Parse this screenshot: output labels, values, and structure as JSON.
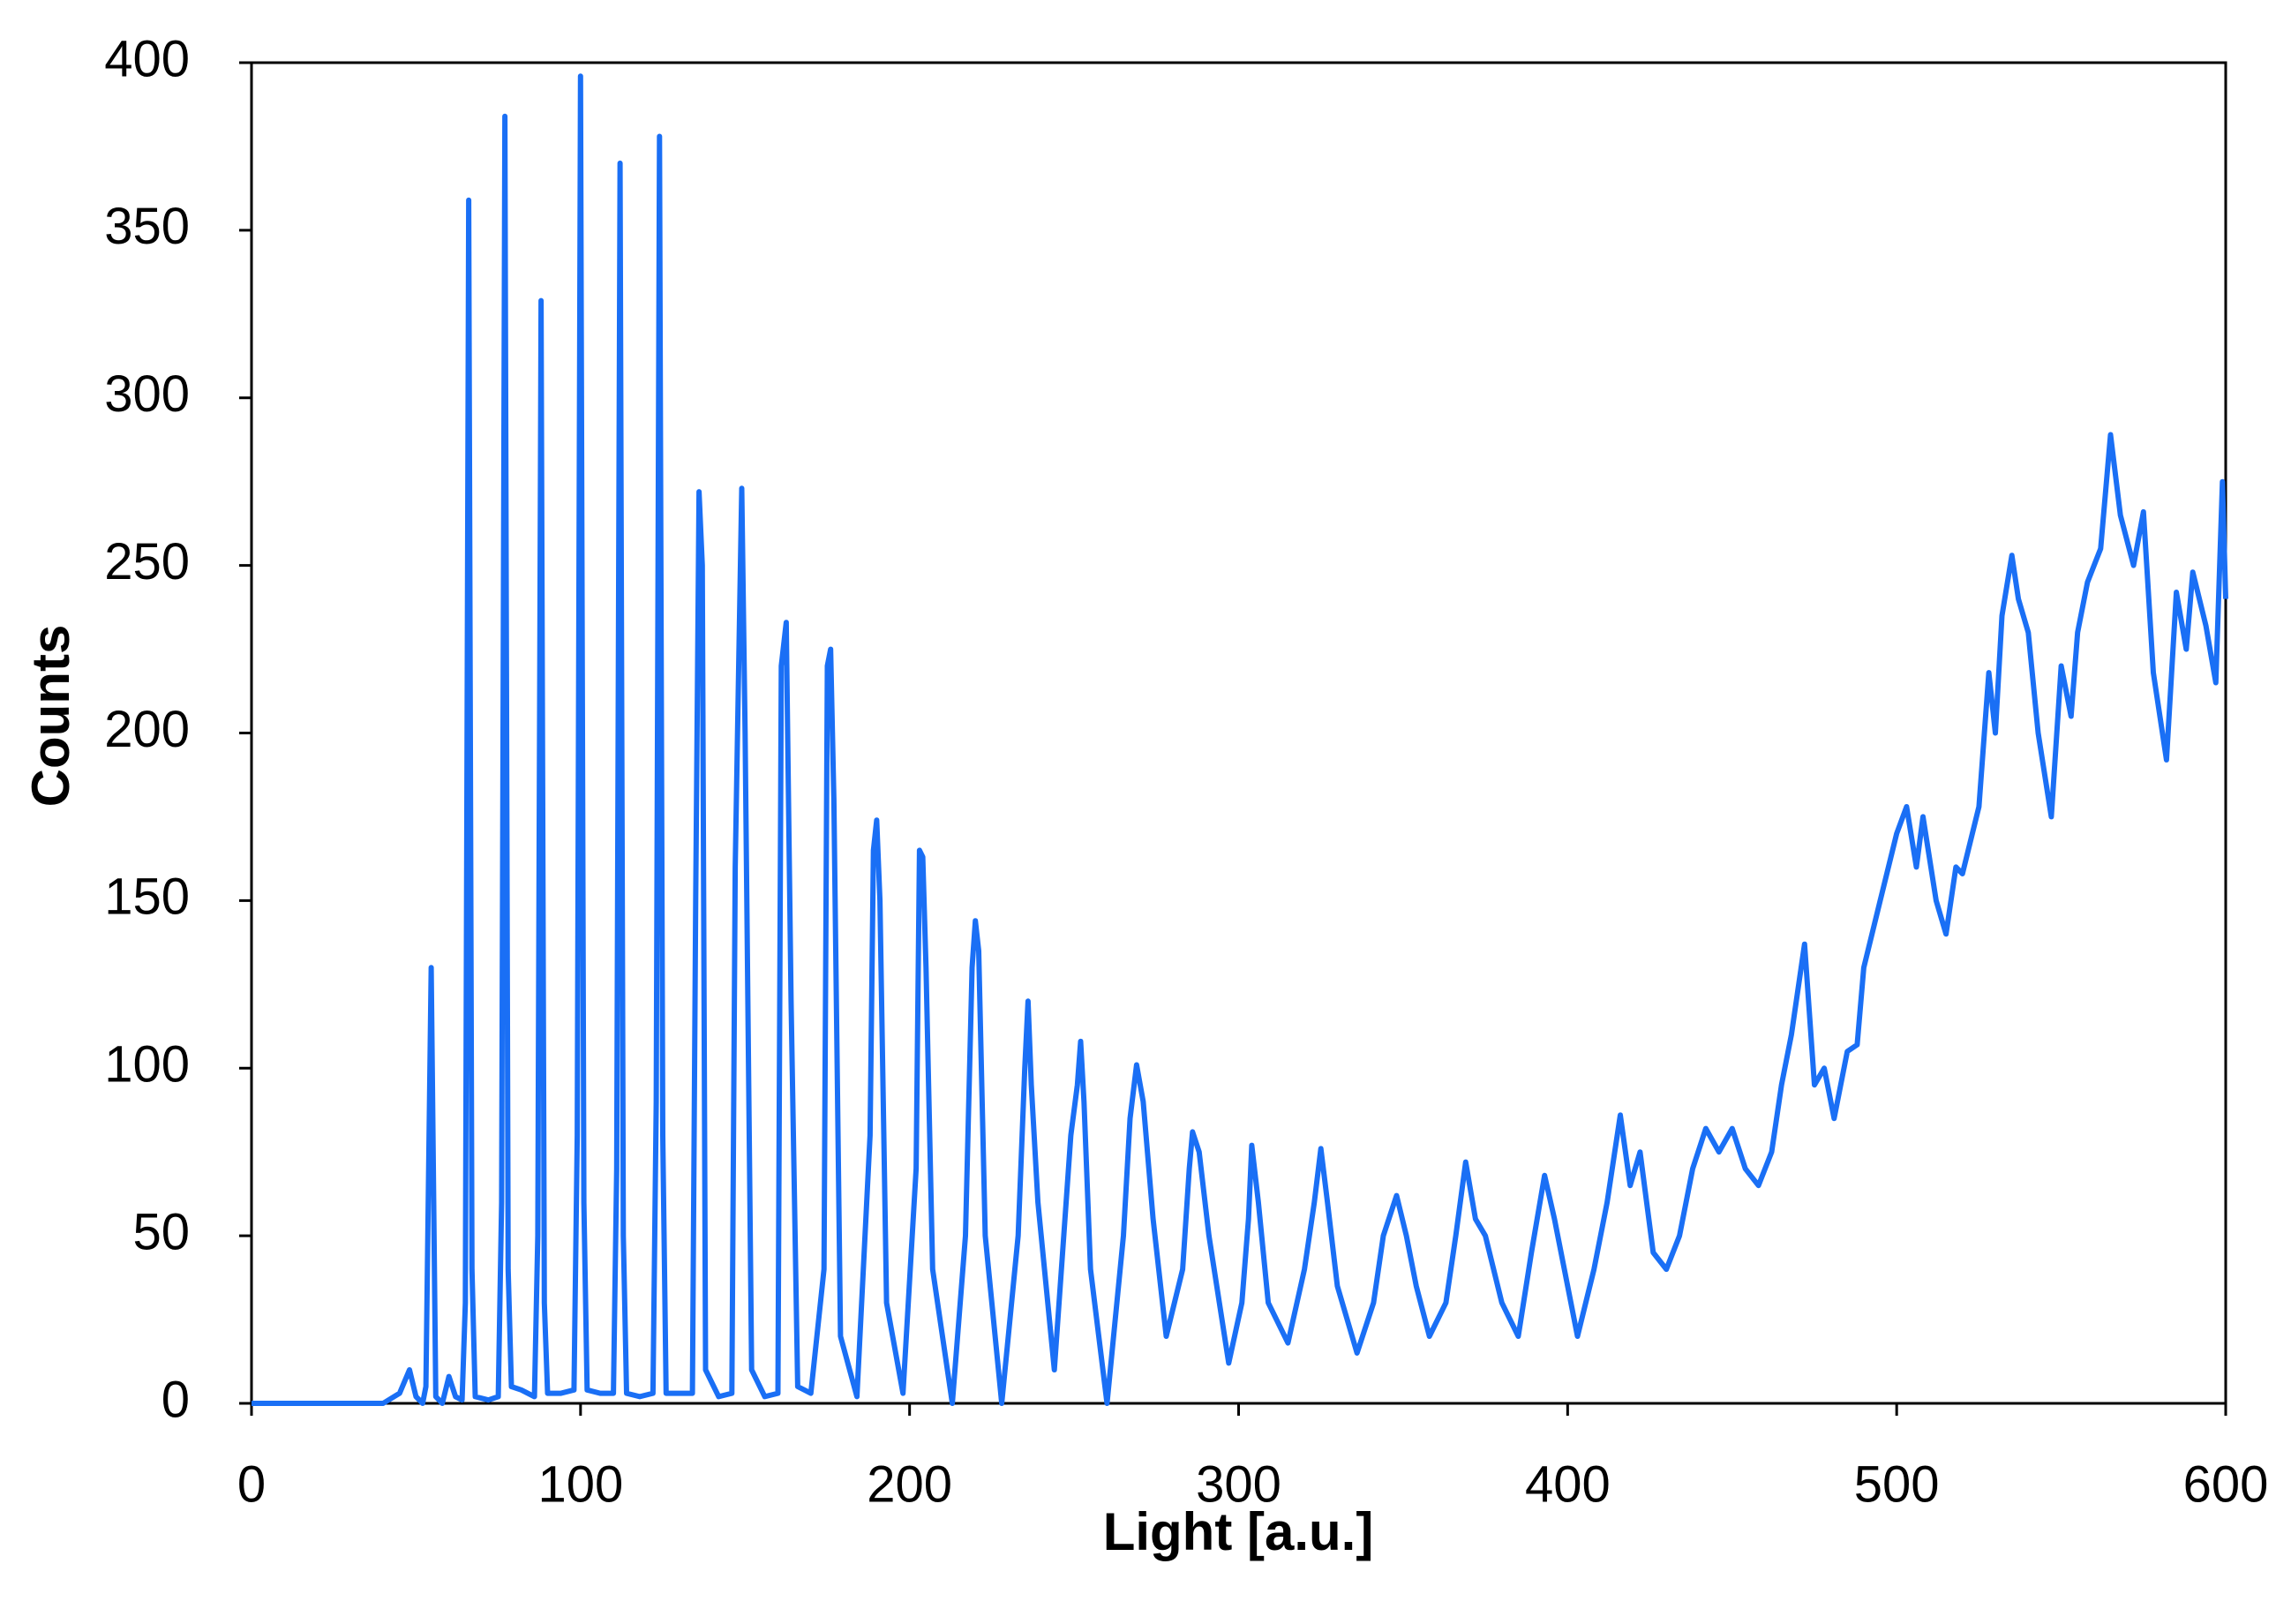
{
  "chart_data": {
    "type": "line",
    "xlabel": "Light [a.u.]",
    "ylabel": "Counts",
    "xlim": [
      0,
      600
    ],
    "xticks": [
      0,
      100,
      200,
      300,
      400,
      500,
      600
    ],
    "ylim": [
      0,
      400
    ],
    "yticks": [
      0,
      50,
      100,
      150,
      200,
      250,
      300,
      350,
      400
    ],
    "x": [
      0,
      40,
      45,
      48,
      50,
      52,
      53,
      54.6,
      56,
      58,
      60,
      62,
      64,
      65,
      66,
      67,
      68,
      72,
      75,
      76,
      77,
      78,
      79,
      82,
      86,
      87,
      88,
      89,
      90,
      94,
      98,
      99,
      100,
      101,
      102,
      106,
      110,
      111,
      112,
      113,
      114,
      118,
      122,
      123,
      124,
      125,
      126,
      130,
      134,
      135,
      136,
      137,
      138,
      142,
      146,
      147,
      149,
      150,
      152,
      156,
      160,
      161,
      162.5,
      164,
      166,
      170,
      174,
      175,
      176,
      177,
      179,
      184,
      188,
      189,
      190,
      191,
      193,
      198,
      202,
      203,
      204,
      205,
      207,
      213,
      217,
      219,
      220,
      221,
      223,
      228,
      233,
      235,
      236,
      237,
      239,
      244,
      249,
      251,
      252,
      253,
      255,
      260,
      265,
      267,
      269,
      271,
      274,
      278,
      283,
      285,
      286,
      288,
      291,
      297,
      301,
      303,
      304,
      306,
      309,
      315,
      320,
      323,
      325,
      327,
      330,
      336,
      341,
      344,
      348,
      351,
      354,
      358,
      363,
      366,
      369,
      372,
      375,
      380,
      385,
      389,
      393,
      396,
      399,
      403,
      408,
      412,
      416,
      419,
      422,
      426,
      430,
      434,
      438,
      442,
      446,
      450,
      454,
      458,
      462,
      465,
      468,
      472,
      475,
      478,
      481,
      485,
      488,
      490,
      495,
      500,
      503,
      506,
      508,
      512,
      515,
      518,
      520,
      525,
      528,
      530,
      532,
      535,
      537,
      540,
      543,
      547,
      550,
      553,
      555,
      558,
      562,
      565,
      568,
      572,
      575,
      578,
      582,
      585,
      588,
      590,
      594,
      597,
      599,
      600
    ],
    "series": [
      {
        "color": "#1a6ff5",
        "values": [
          0,
          0,
          3,
          10,
          2,
          0,
          5,
          130,
          2,
          0,
          8,
          2,
          1,
          30,
          359,
          40,
          2,
          1,
          2,
          60,
          384,
          40,
          5,
          4,
          2,
          50,
          329,
          30,
          3,
          3,
          4,
          80,
          396,
          60,
          4,
          3,
          3,
          70,
          370,
          50,
          3,
          2,
          3,
          90,
          378,
          80,
          3,
          3,
          3,
          150,
          272,
          250,
          10,
          2,
          3,
          160,
          273,
          200,
          10,
          2,
          3,
          220,
          233,
          120,
          5,
          3,
          40,
          220,
          225,
          180,
          20,
          2,
          80,
          165,
          174,
          150,
          30,
          3,
          70,
          165,
          163,
          130,
          40,
          0,
          50,
          130,
          144,
          135,
          50,
          0,
          50,
          100,
          120,
          95,
          60,
          10,
          80,
          95,
          108,
          90,
          40,
          0,
          50,
          85,
          101,
          90,
          55,
          20,
          40,
          70,
          81,
          75,
          50,
          12,
          30,
          55,
          77,
          60,
          30,
          18,
          40,
          60,
          76,
          60,
          35,
          15,
          30,
          50,
          62,
          50,
          35,
          20,
          30,
          50,
          72,
          55,
          50,
          30,
          20,
          45,
          68,
          55,
          40,
          20,
          40,
          60,
          86,
          65,
          75,
          45,
          40,
          50,
          70,
          82,
          75,
          82,
          70,
          65,
          75,
          95,
          110,
          137,
          95,
          100,
          85,
          105,
          107,
          130,
          150,
          170,
          178,
          160,
          175,
          150,
          140,
          160,
          158,
          178,
          218,
          200,
          235,
          253,
          240,
          230,
          200,
          175,
          220,
          205,
          230,
          245,
          255,
          289,
          265,
          250,
          266,
          218,
          192,
          242,
          225,
          248,
          232,
          215,
          275,
          240
        ]
      }
    ]
  }
}
